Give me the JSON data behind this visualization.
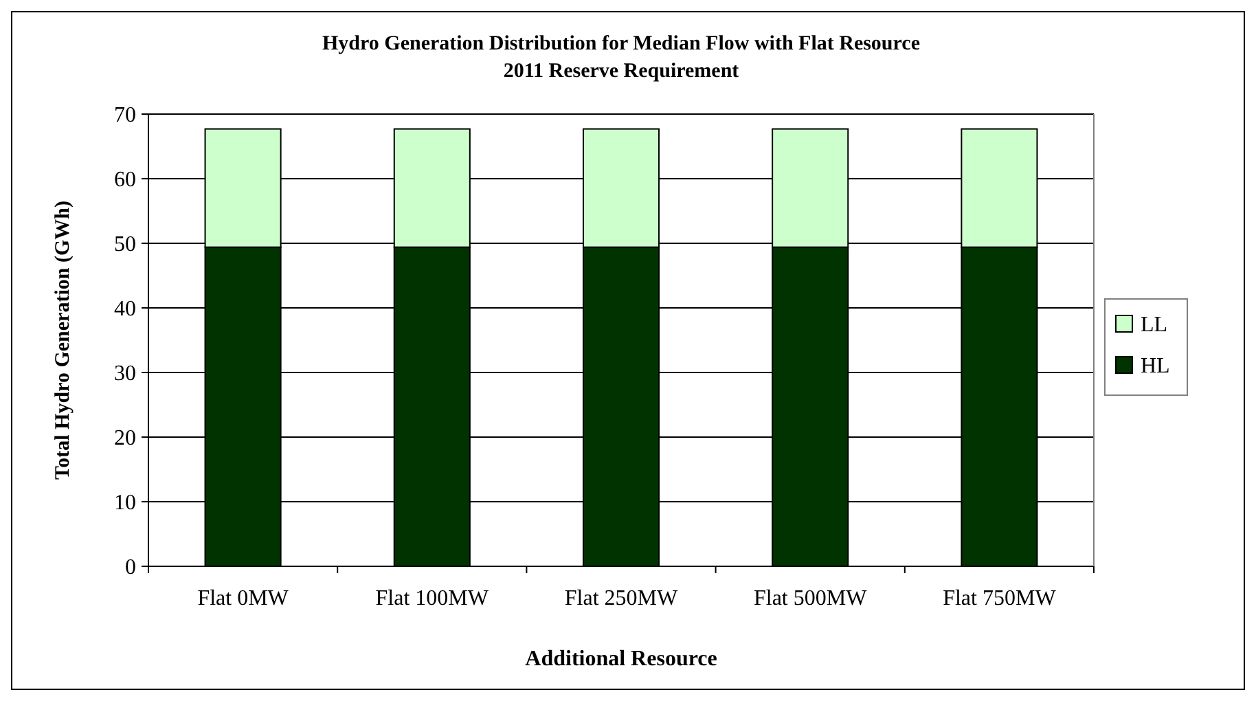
{
  "chart_data": {
    "type": "bar",
    "title": "Hydro Generation Distribution for Median Flow with Flat Resource\n2011 Reserve Requirement",
    "xlabel": "Additional Resource",
    "ylabel": "Total Hydro Generation (GWh)",
    "categories": [
      "Flat 0MW",
      "Flat 100MW",
      "Flat 250MW",
      "Flat 500MW",
      "Flat 750MW"
    ],
    "stacked": true,
    "series": [
      {
        "name": "HL",
        "color": "#003300",
        "values": [
          49.4,
          49.4,
          49.4,
          49.4,
          49.4
        ]
      },
      {
        "name": "LL",
        "color": "#ccffcc",
        "values": [
          18.3,
          18.3,
          18.3,
          18.3,
          18.3
        ]
      }
    ],
    "ylim": [
      0,
      70
    ],
    "yticks": [
      0,
      10,
      20,
      30,
      40,
      50,
      60,
      70
    ],
    "grid": "y",
    "legend": "right"
  }
}
